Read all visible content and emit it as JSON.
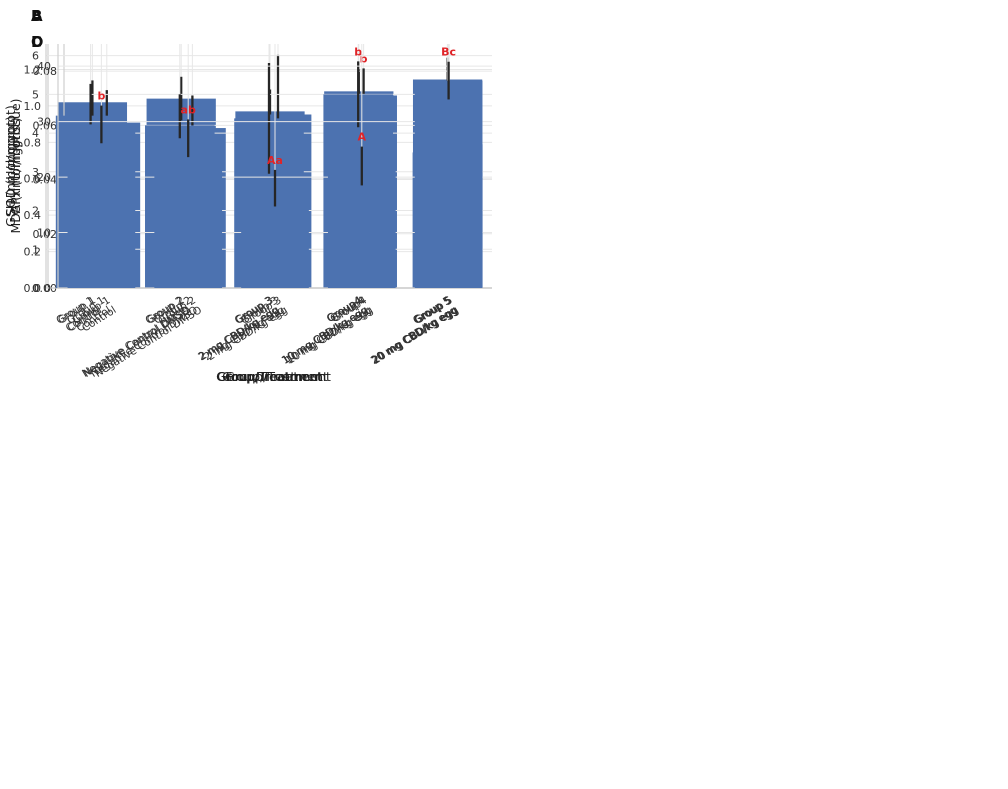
{
  "colors": {
    "bar": "#4C72B0",
    "error_bar": "#262626",
    "annotation": "#e02327",
    "grid": "#e7e7e7",
    "spine": "#cfcfcf",
    "tick_text": "#333333",
    "axis_label_text": "#1f1f1f",
    "panel_letter": "#111111",
    "background": "#ffffff"
  },
  "chart_data": [
    {
      "type": "bar",
      "panel_label": "A",
      "title": "",
      "xlabel": "Group/Treatment",
      "ylabel": "GSH (nmol/mgprot)",
      "categories": [
        [
          "Group 1",
          "Control"
        ],
        [
          "Group 2",
          "Negative Control DMSO"
        ],
        [
          "Group 3",
          "2 mg CBD/kg egg"
        ],
        [
          "Group4",
          "10 mg CBD/kg egg"
        ],
        [
          "Group 5",
          "20 mg CBD/kg egg"
        ]
      ],
      "values": [
        1.02,
        1.04,
        0.97,
        1.08,
        1.145
      ],
      "errors": [
        0.12,
        0.12,
        0.12,
        0.12,
        0.12
      ],
      "annotations": [
        "",
        "",
        "",
        "",
        ""
      ],
      "ylim": [
        0,
        1.34
      ],
      "yticks": {
        "values": [
          0,
          0.2,
          0.4,
          0.6,
          0.8,
          1.0,
          1.2
        ],
        "labels": [
          "0.0",
          "0.2",
          "0.4",
          "0.6",
          "0.8",
          "1.0",
          "1.2"
        ]
      },
      "grid": true,
      "legend": "none"
    },
    {
      "type": "bar",
      "panel_label": "B",
      "title": "",
      "xlabel": "Group/Treatment",
      "ylabel": "GPx (U/mgprot)",
      "categories": [
        [
          "Group 1",
          "Control"
        ],
        [
          "Group 2",
          "Negative Control DMSO"
        ],
        [
          "Group 3",
          "2 mg CBD/kg egg"
        ],
        [
          "Group4",
          "10 mg CBD/kg egg"
        ],
        [
          "Group 5",
          "20 mg CBD/kg egg"
        ]
      ],
      "values": [
        0.061,
        0.059,
        0.064,
        0.071,
        0.053
      ],
      "errors": [
        0.012,
        0.012,
        0.022,
        0.01,
        0.01
      ],
      "annotations": [
        "",
        "",
        "",
        "b",
        "a"
      ],
      "ylim": [
        0,
        0.09
      ],
      "yticks": {
        "values": [
          0,
          0.02,
          0.04,
          0.06,
          0.08
        ],
        "labels": [
          "0.00",
          "0.02",
          "0.04",
          "0.06",
          "0.08"
        ]
      },
      "grid": true,
      "legend": "none"
    },
    {
      "type": "bar",
      "panel_label": "C",
      "title": "",
      "xlabel": "Group/Treatment",
      "ylabel": "SOD (U/mgprot)",
      "categories": [
        [
          "Group 1",
          "Control"
        ],
        [
          "Group 2",
          "Negative Control DMSO"
        ],
        [
          "Group 3",
          "2 mg CBD/kg egg"
        ],
        [
          "Group4",
          "10 mg CBD/kg egg"
        ],
        [
          "Group 5",
          "20 mg CBD/kg egg"
        ]
      ],
      "values": [
        4.45,
        4.2,
        4.38,
        5.0,
        3.5
      ],
      "errors": [
        0.82,
        0.8,
        1.43,
        0.85,
        0.85
      ],
      "annotations": [
        "",
        "",
        "",
        "b",
        "a"
      ],
      "ylim": [
        0,
        6.3
      ],
      "yticks": {
        "values": [
          0,
          1,
          2,
          3,
          4,
          5,
          6
        ],
        "labels": [
          "0",
          "1",
          "2",
          "3",
          "4",
          "5",
          "6"
        ]
      },
      "grid": true,
      "legend": "none"
    },
    {
      "type": "bar",
      "panel_label": "D",
      "title": "",
      "xlabel": "Group/Treatment",
      "ylabel": "MDA (nmol/mgtissue)",
      "categories": [
        [
          "Group 1",
          "Control"
        ],
        [
          "Group 2",
          "Negative Control DMSO"
        ],
        [
          "Group 3",
          "2 mg CBD/kg egg"
        ],
        [
          "Group4",
          "10 mg CBD/kg egg"
        ],
        [
          "Group 5",
          "20 mg CBD/kg egg"
        ]
      ],
      "values": [
        29.5,
        27.0,
        18.0,
        22.0,
        37.4
      ],
      "errors": [
        3.4,
        3.4,
        3.3,
        3.5,
        3.4
      ],
      "annotations": [
        "b",
        "ab",
        "Aa",
        "A",
        "Bc"
      ],
      "ylim": [
        0,
        44
      ],
      "yticks": {
        "values": [
          0,
          10,
          20,
          30,
          40
        ],
        "labels": [
          "0",
          "10",
          "20",
          "30",
          "40"
        ]
      },
      "grid": true,
      "legend": "none"
    }
  ]
}
